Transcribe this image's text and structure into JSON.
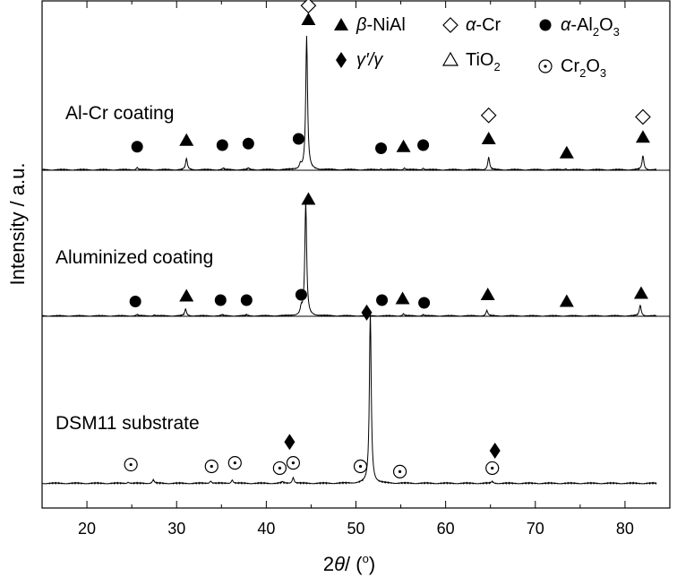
{
  "chart_data": {
    "type": "line",
    "xlabel": "2θ/ (°)",
    "xlabel_parts": {
      "prefix": "2",
      "theta": "θ",
      "mid": "/ (",
      "deg": "o",
      "suffix": ")"
    },
    "ylabel": "Intensity / a.u.",
    "xlim": [
      15,
      85
    ],
    "x_ticks": [
      20,
      30,
      40,
      50,
      60,
      70,
      80
    ],
    "legend": {
      "placement": "top-right",
      "entries": [
        {
          "id": "beta",
          "marker": "filled-triangle",
          "italic": "β",
          "text": "-NiAl"
        },
        {
          "id": "alphaCr",
          "marker": "open-diamond",
          "italic": "α",
          "text": "-Cr"
        },
        {
          "id": "alumina",
          "marker": "filled-circle",
          "italic": "α",
          "text": "-Al",
          "sub1": "2",
          "mid": "O",
          "sub2": "3"
        },
        {
          "id": "gamma",
          "marker": "filled-diamond",
          "italic": "γ′/γ",
          "text": ""
        },
        {
          "id": "tio2",
          "marker": "open-triangle",
          "italic": "",
          "text": "TiO",
          "sub1": "2"
        },
        {
          "id": "cr2o3",
          "marker": "dotted-circle",
          "italic": "",
          "text": "Cr",
          "sub1": "2",
          "mid": "O",
          "sub2": "3"
        }
      ]
    },
    "series": [
      {
        "name": "Al-Cr coating",
        "baseline_frac": 0.0,
        "peaks": [
          {
            "x": 25.6,
            "h": 0.015
          },
          {
            "x": 31.1,
            "h": 0.07
          },
          {
            "x": 35.2,
            "h": 0.01
          },
          {
            "x": 38.0,
            "h": 0.01
          },
          {
            "x": 43.8,
            "h": 0.03
          },
          {
            "x": 44.5,
            "h": 0.85
          },
          {
            "x": 52.8,
            "h": 0.008
          },
          {
            "x": 55.4,
            "h": 0.012
          },
          {
            "x": 57.5,
            "h": 0.012
          },
          {
            "x": 64.8,
            "h": 0.08
          },
          {
            "x": 73.4,
            "h": 0.008
          },
          {
            "x": 82.0,
            "h": 0.09
          }
        ],
        "markers": [
          {
            "type": "alumina",
            "x": 25.6,
            "h": 0.15
          },
          {
            "type": "beta",
            "x": 31.1,
            "h": 0.19
          },
          {
            "type": "alumina",
            "x": 35.1,
            "h": 0.16
          },
          {
            "type": "alumina",
            "x": 38.0,
            "h": 0.17
          },
          {
            "type": "alumina",
            "x": 43.6,
            "h": 0.2
          },
          {
            "type": "beta",
            "x": 44.7,
            "h": 0.96
          },
          {
            "type": "alphaCr",
            "x": 44.7,
            "h": 1.05
          },
          {
            "type": "alumina",
            "x": 52.8,
            "h": 0.14
          },
          {
            "type": "beta",
            "x": 55.3,
            "h": 0.15
          },
          {
            "type": "alumina",
            "x": 57.5,
            "h": 0.16
          },
          {
            "type": "beta",
            "x": 64.8,
            "h": 0.2
          },
          {
            "type": "alphaCr",
            "x": 64.8,
            "h": 0.35
          },
          {
            "type": "beta",
            "x": 73.5,
            "h": 0.11
          },
          {
            "type": "beta",
            "x": 82.0,
            "h": 0.21
          },
          {
            "type": "alphaCr",
            "x": 82.0,
            "h": 0.34
          }
        ]
      },
      {
        "name": "Aluminized  coating",
        "peaks": [
          {
            "x": 25.6,
            "h": 0.01
          },
          {
            "x": 27.5,
            "h": 0.008
          },
          {
            "x": 31.0,
            "h": 0.05
          },
          {
            "x": 35.1,
            "h": 0.008
          },
          {
            "x": 37.8,
            "h": 0.008
          },
          {
            "x": 43.9,
            "h": 0.05
          },
          {
            "x": 44.4,
            "h": 0.85
          },
          {
            "x": 55.3,
            "h": 0.015
          },
          {
            "x": 57.5,
            "h": 0.01
          },
          {
            "x": 64.6,
            "h": 0.04
          },
          {
            "x": 81.7,
            "h": 0.08
          }
        ],
        "markers": [
          {
            "type": "alumina",
            "x": 25.4,
            "h": 0.11
          },
          {
            "type": "beta",
            "x": 31.1,
            "h": 0.15
          },
          {
            "type": "alumina",
            "x": 34.9,
            "h": 0.12
          },
          {
            "type": "alumina",
            "x": 37.8,
            "h": 0.12
          },
          {
            "type": "alumina",
            "x": 43.9,
            "h": 0.16
          },
          {
            "type": "beta",
            "x": 44.7,
            "h": 0.87
          },
          {
            "type": "alumina",
            "x": 52.9,
            "h": 0.12
          },
          {
            "type": "beta",
            "x": 55.2,
            "h": 0.13
          },
          {
            "type": "alumina",
            "x": 57.6,
            "h": 0.1
          },
          {
            "type": "beta",
            "x": 64.7,
            "h": 0.16
          },
          {
            "type": "beta",
            "x": 73.5,
            "h": 0.11
          },
          {
            "type": "beta",
            "x": 81.8,
            "h": 0.17
          }
        ]
      },
      {
        "name": "DSM11 substrate",
        "peaks": [
          {
            "x": 24.6,
            "h": 0.008
          },
          {
            "x": 27.4,
            "h": 0.02
          },
          {
            "x": 33.8,
            "h": 0.015
          },
          {
            "x": 36.2,
            "h": 0.02
          },
          {
            "x": 41.8,
            "h": 0.008
          },
          {
            "x": 43.0,
            "h": 0.035
          },
          {
            "x": 51.6,
            "h": 0.98
          },
          {
            "x": 65.2,
            "h": 0.01
          }
        ],
        "markers": [
          {
            "type": "cr2o3",
            "x": 24.9,
            "h": 0.11
          },
          {
            "type": "cr2o3",
            "x": 33.9,
            "h": 0.1
          },
          {
            "type": "cr2o3",
            "x": 36.5,
            "h": 0.12
          },
          {
            "type": "cr2o3",
            "x": 41.5,
            "h": 0.09
          },
          {
            "type": "gamma",
            "x": 42.6,
            "h": 0.24
          },
          {
            "type": "cr2o3",
            "x": 43.0,
            "h": 0.12
          },
          {
            "type": "cr2o3",
            "x": 50.5,
            "h": 0.1
          },
          {
            "type": "gamma",
            "x": 51.2,
            "h": 0.98
          },
          {
            "type": "cr2o3",
            "x": 54.9,
            "h": 0.07
          },
          {
            "type": "cr2o3",
            "x": 65.2,
            "h": 0.09
          },
          {
            "type": "gamma",
            "x": 65.5,
            "h": 0.19
          }
        ]
      }
    ]
  }
}
